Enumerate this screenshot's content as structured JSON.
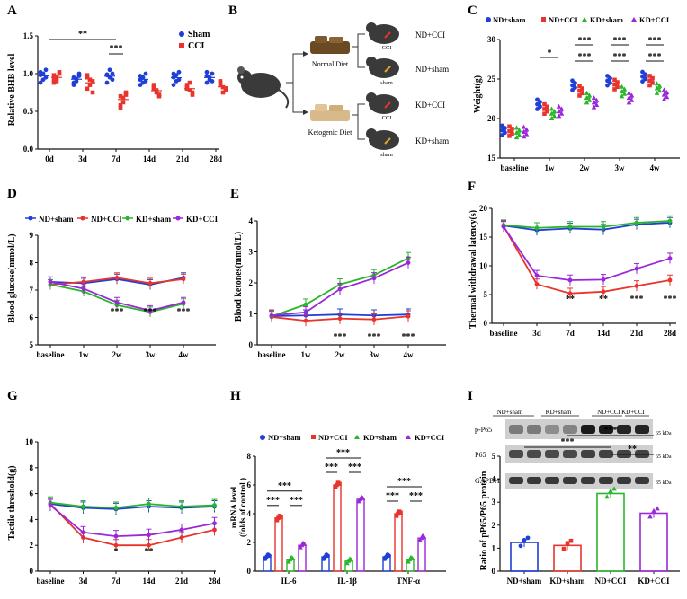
{
  "colors": {
    "blue": "#1f3fd6",
    "red": "#e8342c",
    "green": "#2ab52a",
    "purple": "#9a28d8",
    "black": "#111111"
  },
  "panels": {
    "A": {
      "letter": "A",
      "ylabel": "Relative BHB level",
      "ylim": [
        0,
        1.5
      ],
      "yticks": [
        "0.0",
        "0.5",
        "1.0",
        "1.5"
      ],
      "categories": [
        "0d",
        "3d",
        "7d",
        "14d",
        "21d",
        "28d"
      ],
      "legend": [
        "Sham",
        "CCI"
      ],
      "sig": [
        {
          "label": "**",
          "from": 0,
          "to": 2
        },
        {
          "label": "***",
          "from": 2,
          "to": 2
        }
      ],
      "sham_points": [
        [
          0.98,
          0.92,
          1.05,
          0.88,
          1.0,
          0.95,
          1.02
        ],
        [
          0.95,
          0.9,
          1.0,
          0.85,
          0.93,
          0.97,
          0.88
        ],
        [
          0.98,
          1.05,
          0.92,
          0.88,
          0.95,
          1.0,
          0.99
        ],
        [
          0.92,
          0.88,
          1.0,
          0.85,
          0.95,
          0.9,
          0.97
        ],
        [
          0.95,
          0.9,
          1.02,
          0.85,
          0.98,
          0.92,
          1.0
        ],
        [
          0.97,
          0.92,
          1.0,
          0.88,
          0.95,
          0.9,
          1.02
        ]
      ],
      "cci_points": [
        [
          0.98,
          0.9,
          1.0,
          0.88,
          0.95,
          1.02,
          0.92
        ],
        [
          0.95,
          0.85,
          0.9,
          0.8,
          0.92,
          0.75,
          0.98
        ],
        [
          0.7,
          0.62,
          0.75,
          0.55,
          0.68,
          0.72,
          0.58
        ],
        [
          0.82,
          0.75,
          0.7,
          0.85,
          0.78,
          0.72,
          0.8
        ],
        [
          0.85,
          0.78,
          0.72,
          0.8,
          0.88,
          0.75,
          0.82
        ],
        [
          0.9,
          0.82,
          0.78,
          0.85,
          0.75,
          0.8,
          0.88
        ]
      ]
    },
    "B": {
      "letter": "B",
      "normal_diet": "Normal Diet",
      "ketogenic_diet": "Ketogenic Diet",
      "groups": [
        "ND+CCI",
        "ND+sham",
        "KD+CCI",
        "KD+sham"
      ],
      "cci": "CCI",
      "sham": "sham"
    },
    "C": {
      "letter": "C",
      "ylabel": "Weight(g)",
      "ylim": [
        15,
        30
      ],
      "yticks": [
        "15",
        "20",
        "25",
        "30"
      ],
      "categories": [
        "baseline",
        "1w",
        "2w",
        "3w",
        "4w"
      ],
      "legend": [
        "ND+sham",
        "ND+CCI",
        "KD+sham",
        "KD+CCI"
      ],
      "means": {
        "nd_sham": [
          18.5,
          21.8,
          24.2,
          24.8,
          25.3
        ],
        "nd_cci": [
          18.4,
          21.2,
          23.5,
          24.3,
          24.8
        ],
        "kd_sham": [
          18.2,
          20.6,
          22.6,
          23.4,
          23.8
        ],
        "kd_cci": [
          18.3,
          20.9,
          22.0,
          22.6,
          23.0
        ]
      },
      "sig": [
        {
          "label": "*",
          "cat": 1
        },
        {
          "label": "***",
          "cat": 2
        },
        {
          "label": "***",
          "cat": 2
        },
        {
          "label": "***",
          "cat": 3
        },
        {
          "label": "***",
          "cat": 3
        },
        {
          "label": "***",
          "cat": 4
        },
        {
          "label": "***",
          "cat": 4
        }
      ]
    },
    "D": {
      "letter": "D",
      "ylabel": "Blood glucose(mmol/L)",
      "ylim": [
        5,
        9
      ],
      "yticks": [
        "5",
        "6",
        "7",
        "8",
        "9"
      ],
      "categories": [
        "baseline",
        "1w",
        "2w",
        "3w",
        "4w"
      ],
      "legend": [
        "ND+sham",
        "ND+CCI",
        "KD+sham",
        "KD+CCI"
      ],
      "series": {
        "nd_sham": [
          7.3,
          7.25,
          7.4,
          7.2,
          7.45
        ],
        "nd_cci": [
          7.2,
          7.3,
          7.45,
          7.25,
          7.4
        ],
        "kd_sham": [
          7.2,
          6.95,
          6.45,
          6.2,
          6.5
        ],
        "kd_cci": [
          7.3,
          7.05,
          6.55,
          6.25,
          6.55
        ]
      },
      "sig": [
        "",
        "",
        "***",
        "***",
        "***"
      ]
    },
    "E": {
      "letter": "E",
      "ylabel": "Blood ketones(mmol/L)",
      "ylim": [
        0,
        4
      ],
      "yticks": [
        "0",
        "1",
        "2",
        "3",
        "4"
      ],
      "categories": [
        "baseline",
        "1w",
        "2w",
        "3w",
        "4w"
      ],
      "series": {
        "nd_sham": [
          0.93,
          0.95,
          0.98,
          0.95,
          0.98
        ],
        "nd_cci": [
          0.9,
          0.78,
          0.85,
          0.82,
          0.92
        ],
        "kd_sham": [
          0.92,
          1.3,
          1.95,
          2.25,
          2.8
        ],
        "kd_cci": [
          0.95,
          1.05,
          1.8,
          2.15,
          2.65
        ]
      },
      "sig": [
        "",
        "",
        "***",
        "***",
        "***"
      ]
    },
    "F": {
      "letter": "F",
      "ylabel": "Thermal withdrawal latency(s)",
      "ylim": [
        0,
        20
      ],
      "yticks": [
        "0",
        "5",
        "10",
        "15",
        "20"
      ],
      "categories": [
        "baseline",
        "3d",
        "7d",
        "14d",
        "21d",
        "28d"
      ],
      "series": {
        "nd_sham": [
          17.0,
          16.2,
          16.5,
          16.3,
          17.2,
          17.5
        ],
        "nd_cci": [
          16.9,
          6.8,
          5.2,
          5.5,
          6.5,
          7.5
        ],
        "kd_sham": [
          17.1,
          16.6,
          16.8,
          16.8,
          17.5,
          17.8
        ],
        "kd_cci": [
          16.8,
          8.3,
          7.5,
          7.6,
          9.5,
          11.3
        ]
      },
      "sig": [
        "",
        "",
        "**",
        "**",
        "***",
        "***"
      ]
    },
    "G": {
      "letter": "G",
      "ylabel": "Tactile threshold(g)",
      "ylim": [
        0,
        10
      ],
      "yticks": [
        "0",
        "2",
        "4",
        "6",
        "8",
        "10"
      ],
      "categories": [
        "baseline",
        "3d",
        "7d",
        "14d",
        "21d",
        "28d"
      ],
      "series": {
        "nd_sham": [
          5.2,
          4.9,
          4.8,
          5.0,
          4.9,
          5.0
        ],
        "nd_cci": [
          5.2,
          2.6,
          2.0,
          2.0,
          2.6,
          3.2
        ],
        "kd_sham": [
          5.3,
          5.0,
          4.9,
          5.2,
          5.0,
          5.1
        ],
        "kd_cci": [
          5.1,
          3.0,
          2.7,
          2.8,
          3.2,
          3.7
        ]
      },
      "sig": [
        "",
        "",
        "*",
        "**",
        "",
        ""
      ]
    },
    "H": {
      "letter": "H",
      "ylabel": "mRNA level",
      "ylabel2": "(folds of control )",
      "ylim": [
        0,
        8
      ],
      "yticks": [
        "0",
        "2",
        "4",
        "6",
        "8"
      ],
      "categories": [
        "IL-6",
        "IL-1β",
        "TNF-α"
      ],
      "legend": [
        "ND+sham",
        "ND+CCI",
        "KD+sham",
        "KD+CCI"
      ],
      "means": {
        "nd_sham": [
          1.0,
          1.0,
          1.0
        ],
        "nd_cci": [
          3.7,
          6.0,
          4.0
        ],
        "kd_sham": [
          0.8,
          0.7,
          0.8
        ],
        "kd_cci": [
          1.8,
          5.0,
          2.3
        ]
      },
      "sig_labels": [
        "***",
        "***",
        "***",
        "***",
        "***",
        "***",
        "***",
        "***",
        "***"
      ]
    },
    "I": {
      "letter": "I",
      "ylabel": "Ratio of pP65/P65 protein",
      "ylim": [
        0,
        5
      ],
      "yticks": [
        "0",
        "1",
        "2",
        "3",
        "4",
        "5"
      ],
      "categories": [
        "ND+sham",
        "KD+sham",
        "ND+CCI",
        "KD+CCI"
      ],
      "values": [
        1.25,
        1.12,
        3.38,
        2.52
      ],
      "blot_headers": [
        "ND+sham",
        "KD+sham",
        "ND+CCI",
        "KD+CCI"
      ],
      "blot_rows": [
        "p-P65",
        "P65",
        "GAPDH"
      ],
      "kda": [
        "65 kDa",
        "65 kDa",
        "35 kDa"
      ],
      "sig": [
        "***",
        "***",
        "**"
      ]
    }
  }
}
